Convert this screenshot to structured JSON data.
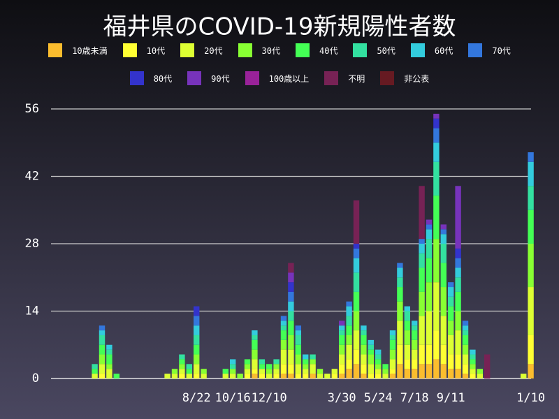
{
  "chart_data": {
    "type": "bar",
    "stacked": true,
    "title": "福井県のCOVID-19新規陽性者数",
    "categories": [
      null,
      null,
      null,
      null,
      null,
      null,
      null,
      null,
      null,
      null,
      null,
      null,
      null,
      null,
      null,
      null,
      null,
      null,
      null,
      null,
      "8/22",
      null,
      null,
      null,
      null,
      "10/16",
      null,
      null,
      null,
      null,
      "12/10",
      null,
      null,
      null,
      null,
      null,
      null,
      null,
      null,
      null,
      "3/30",
      null,
      null,
      null,
      null,
      "5/24",
      null,
      null,
      null,
      null,
      "7/18",
      null,
      null,
      null,
      null,
      "9/11",
      null,
      null,
      null,
      null,
      null,
      null,
      null,
      null,
      null,
      null,
      "1/10"
    ],
    "ylim": [
      0,
      56
    ],
    "yticks": [
      0,
      14,
      28,
      42,
      56
    ],
    "grid": true,
    "series": [
      {
        "name": "10歳未満",
        "color": "#fbbd2e",
        "values": [
          0,
          0,
          0,
          0,
          0,
          0,
          0,
          0,
          0,
          0,
          0,
          0,
          0,
          0,
          0,
          0,
          0,
          0,
          0,
          0,
          0,
          0,
          0,
          0,
          0,
          0,
          0,
          0,
          1,
          0,
          0,
          0,
          1,
          1,
          0,
          0,
          1,
          0,
          0,
          0,
          1,
          2,
          3,
          1,
          0,
          0,
          0,
          1,
          3,
          2,
          2,
          3,
          3,
          4,
          3,
          2,
          2,
          1,
          0,
          0,
          0,
          0,
          0,
          0,
          0,
          0,
          3
        ]
      },
      {
        "name": "10代",
        "color": "#ffff33",
        "values": [
          0,
          0,
          0,
          0,
          0,
          0,
          0,
          1,
          0,
          0,
          0,
          0,
          0,
          0,
          0,
          0,
          0,
          0,
          1,
          0,
          1,
          0,
          0,
          0,
          0,
          0,
          0,
          1,
          1,
          1,
          0,
          1,
          2,
          2,
          1,
          1,
          0,
          0,
          0,
          1,
          2,
          2,
          3,
          2,
          1,
          1,
          0,
          1,
          4,
          2,
          2,
          4,
          4,
          6,
          4,
          3,
          3,
          2,
          1,
          0,
          0,
          0,
          0,
          0,
          0,
          0,
          6
        ]
      },
      {
        "name": "20代",
        "color": "#ddff33",
        "values": [
          0,
          0,
          0,
          0,
          0,
          0,
          1,
          2,
          2,
          0,
          0,
          0,
          0,
          0,
          0,
          0,
          1,
          1,
          1,
          1,
          2,
          1,
          0,
          0,
          1,
          1,
          0,
          1,
          2,
          1,
          1,
          1,
          3,
          3,
          2,
          1,
          2,
          1,
          1,
          1,
          2,
          3,
          4,
          2,
          2,
          1,
          1,
          2,
          5,
          3,
          2,
          6,
          7,
          10,
          6,
          4,
          5,
          2,
          1,
          1,
          0,
          0,
          0,
          0,
          0,
          1,
          10
        ]
      },
      {
        "name": "30代",
        "color": "#88ff33",
        "values": [
          0,
          0,
          0,
          0,
          0,
          0,
          0,
          2,
          1,
          0,
          0,
          0,
          0,
          0,
          0,
          0,
          0,
          1,
          1,
          0,
          2,
          1,
          0,
          0,
          0,
          1,
          1,
          1,
          2,
          0,
          1,
          1,
          2,
          3,
          2,
          1,
          1,
          1,
          0,
          0,
          2,
          2,
          4,
          2,
          2,
          1,
          1,
          2,
          4,
          3,
          2,
          5,
          6,
          9,
          6,
          3,
          4,
          2,
          1,
          1,
          0,
          0,
          0,
          0,
          0,
          0,
          9
        ]
      },
      {
        "name": "40代",
        "color": "#44ff55",
        "values": [
          0,
          0,
          0,
          0,
          0,
          0,
          1,
          2,
          2,
          1,
          0,
          0,
          0,
          0,
          0,
          0,
          0,
          0,
          1,
          1,
          2,
          0,
          0,
          0,
          1,
          0,
          0,
          1,
          2,
          1,
          1,
          0,
          2,
          3,
          2,
          1,
          0,
          0,
          0,
          0,
          2,
          2,
          4,
          2,
          1,
          1,
          1,
          2,
          3,
          2,
          2,
          5,
          5,
          9,
          5,
          3,
          4,
          2,
          1,
          0,
          0,
          0,
          0,
          0,
          0,
          0,
          7
        ]
      },
      {
        "name": "50代",
        "color": "#33e0a0",
        "values": [
          0,
          0,
          0,
          0,
          0,
          0,
          1,
          2,
          1,
          0,
          0,
          0,
          0,
          0,
          0,
          0,
          0,
          0,
          1,
          1,
          2,
          0,
          0,
          0,
          0,
          1,
          0,
          0,
          1,
          1,
          0,
          1,
          1,
          2,
          2,
          0,
          1,
          0,
          0,
          0,
          1,
          2,
          4,
          1,
          1,
          1,
          0,
          1,
          2,
          2,
          1,
          3,
          4,
          7,
          4,
          2,
          3,
          1,
          1,
          0,
          0,
          0,
          0,
          0,
          0,
          0,
          5
        ]
      },
      {
        "name": "60代",
        "color": "#33ccdd",
        "values": [
          0,
          0,
          0,
          0,
          0,
          0,
          0,
          1,
          1,
          0,
          0,
          0,
          0,
          0,
          0,
          0,
          0,
          0,
          0,
          0,
          2,
          0,
          0,
          0,
          0,
          1,
          0,
          0,
          1,
          0,
          0,
          0,
          1,
          2,
          1,
          1,
          0,
          0,
          0,
          0,
          1,
          2,
          3,
          1,
          1,
          1,
          0,
          1,
          2,
          1,
          1,
          2,
          2,
          4,
          2,
          2,
          2,
          1,
          1,
          0,
          0,
          0,
          0,
          0,
          0,
          0,
          5
        ]
      },
      {
        "name": "70代",
        "color": "#3377dd",
        "values": [
          0,
          0,
          0,
          0,
          0,
          0,
          0,
          1,
          0,
          0,
          0,
          0,
          0,
          0,
          0,
          0,
          0,
          0,
          0,
          0,
          2,
          0,
          0,
          0,
          0,
          0,
          0,
          0,
          0,
          0,
          0,
          0,
          1,
          2,
          1,
          0,
          0,
          0,
          0,
          0,
          0,
          1,
          2,
          0,
          0,
          0,
          0,
          0,
          1,
          0,
          0,
          1,
          1,
          3,
          1,
          1,
          2,
          1,
          0,
          0,
          0,
          0,
          0,
          0,
          0,
          0,
          2
        ]
      },
      {
        "name": "80代",
        "color": "#3333cc",
        "values": [
          0,
          0,
          0,
          0,
          0,
          0,
          0,
          0,
          0,
          0,
          0,
          0,
          0,
          0,
          0,
          0,
          0,
          0,
          0,
          0,
          2,
          0,
          0,
          0,
          0,
          0,
          0,
          0,
          0,
          0,
          0,
          0,
          0,
          2,
          0,
          0,
          0,
          0,
          0,
          0,
          0,
          0,
          1,
          0,
          0,
          0,
          0,
          0,
          0,
          0,
          0,
          0,
          0,
          2,
          0,
          0,
          2,
          0,
          0,
          0,
          0,
          0,
          0,
          0,
          0,
          0,
          0
        ]
      },
      {
        "name": "90代",
        "color": "#7733bb",
        "values": [
          0,
          0,
          0,
          0,
          0,
          0,
          0,
          0,
          0,
          0,
          0,
          0,
          0,
          0,
          0,
          0,
          0,
          0,
          0,
          0,
          0,
          0,
          0,
          0,
          0,
          0,
          0,
          0,
          0,
          0,
          0,
          0,
          0,
          2,
          0,
          0,
          0,
          0,
          0,
          0,
          1,
          0,
          0,
          0,
          0,
          0,
          0,
          0,
          0,
          0,
          0,
          0,
          1,
          1,
          1,
          0,
          13,
          0,
          0,
          0,
          0,
          0,
          0,
          0,
          0,
          0,
          0
        ]
      },
      {
        "name": "100歳以上",
        "color": "#992299",
        "values": [
          0,
          0,
          0,
          0,
          0,
          0,
          0,
          0,
          0,
          0,
          0,
          0,
          0,
          0,
          0,
          0,
          0,
          0,
          0,
          0,
          0,
          0,
          0,
          0,
          0,
          0,
          0,
          0,
          0,
          0,
          0,
          0,
          0,
          0,
          0,
          0,
          0,
          0,
          0,
          0,
          0,
          0,
          0,
          0,
          0,
          0,
          0,
          0,
          0,
          0,
          0,
          0,
          0,
          0,
          0,
          0,
          0,
          0,
          0,
          0,
          0,
          0,
          0,
          0,
          0,
          0,
          0
        ]
      },
      {
        "name": "不明",
        "color": "#772255",
        "values": [
          0,
          0,
          0,
          0,
          0,
          0,
          0,
          0,
          0,
          0,
          0,
          0,
          0,
          0,
          0,
          0,
          0,
          0,
          0,
          0,
          0,
          0,
          0,
          0,
          0,
          0,
          0,
          0,
          0,
          0,
          0,
          0,
          0,
          2,
          0,
          0,
          0,
          0,
          0,
          0,
          0,
          0,
          9,
          0,
          0,
          0,
          0,
          0,
          0,
          0,
          0,
          11,
          0,
          0,
          0,
          0,
          0,
          0,
          0,
          0,
          5,
          0,
          0,
          0,
          0,
          0,
          0
        ]
      },
      {
        "name": "非公表",
        "color": "#661a22",
        "values": [
          0,
          0,
          0,
          0,
          0,
          0,
          0,
          0,
          0,
          0,
          0,
          0,
          0,
          0,
          0,
          0,
          0,
          0,
          0,
          0,
          0,
          0,
          0,
          0,
          0,
          0,
          0,
          0,
          0,
          0,
          0,
          0,
          0,
          0,
          0,
          0,
          0,
          0,
          0,
          0,
          0,
          0,
          0,
          0,
          0,
          0,
          0,
          0,
          0,
          0,
          0,
          0,
          0,
          0,
          0,
          0,
          0,
          0,
          0,
          0,
          0,
          0,
          0,
          0,
          0,
          0,
          0
        ]
      }
    ]
  }
}
